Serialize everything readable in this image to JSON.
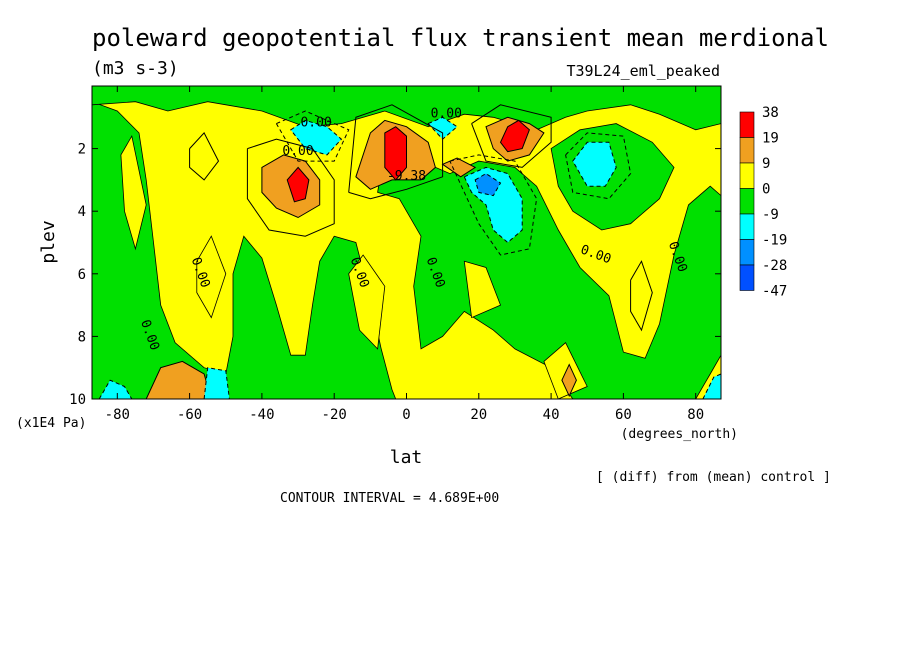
{
  "chart_data": {
    "type": "heatmap",
    "title": "poleward geopotential flux transient mean merdional",
    "units": "(m3 s-3)",
    "run_label": "T39L24_eml_peaked",
    "xlabel": "lat",
    "x_units": "(degrees_north)",
    "ylabel": "plev",
    "y_units": "(x1E4 Pa)",
    "footer_note": "[ (diff) from (mean) control ]",
    "contour_interval_text": "CONTOUR INTERVAL = 4.689E+00",
    "xlim": [
      -87,
      87
    ],
    "ylim": [
      10,
      0
    ],
    "x_ticks": [
      -80,
      -60,
      -40,
      -20,
      0,
      20,
      40,
      60,
      80
    ],
    "y_ticks": [
      2,
      4,
      6,
      8,
      10
    ],
    "colorbar": {
      "labels": [
        "38",
        "19",
        "9",
        "0",
        "-9",
        "-19",
        "-28",
        "-47"
      ],
      "colors": [
        "#ff0000",
        "#f0a020",
        "#ffff00",
        "#00e000",
        "#00ffff",
        "#0090ff",
        "#0050ff"
      ]
    },
    "contour_labels": [
      {
        "text": "0.00",
        "lat": -25,
        "plev": 1.3
      },
      {
        "text": "0.00",
        "lat": 11,
        "plev": 1.0
      },
      {
        "text": "0.00",
        "lat": -30,
        "plev": 2.2
      },
      {
        "text": "-9.38",
        "lat": 0,
        "plev": 3.0
      },
      {
        "text": "0.00",
        "lat": -58,
        "plev": 6.0
      },
      {
        "text": "0.00",
        "lat": -14,
        "plev": 6.0
      },
      {
        "text": "0.00",
        "lat": 7,
        "plev": 6.0
      },
      {
        "text": "0.00",
        "lat": 52,
        "plev": 5.5
      },
      {
        "text": "0.00",
        "lat": 74,
        "plev": 5.5
      },
      {
        "text": "0.00",
        "lat": -72,
        "plev": 8.0
      }
    ],
    "features": [
      {
        "kind": "max",
        "lat": -30,
        "plev": 3.1,
        "value": 38
      },
      {
        "kind": "max",
        "lat": -3,
        "plev": 2.0,
        "value": 38
      },
      {
        "kind": "max",
        "lat": 30,
        "plev": 1.7,
        "value": 38
      },
      {
        "kind": "max",
        "lat": 15,
        "plev": 2.5,
        "value": 19
      },
      {
        "kind": "max",
        "lat": -63,
        "plev": 9.6,
        "value": 19
      },
      {
        "kind": "min",
        "lat": 22,
        "plev": 3.0,
        "value": -28
      },
      {
        "kind": "min",
        "lat": -25,
        "plev": 1.5,
        "value": -19
      },
      {
        "kind": "min",
        "lat": 10,
        "plev": 1.3,
        "value": -19
      },
      {
        "kind": "min",
        "lat": 27,
        "plev": 4.0,
        "value": -19
      },
      {
        "kind": "min",
        "lat": 52,
        "plev": 2.5,
        "value": -19
      },
      {
        "kind": "min",
        "lat": -52,
        "plev": 9.7,
        "value": -19
      },
      {
        "kind": "min",
        "lat": -80,
        "plev": 9.8,
        "value": -19
      }
    ]
  }
}
